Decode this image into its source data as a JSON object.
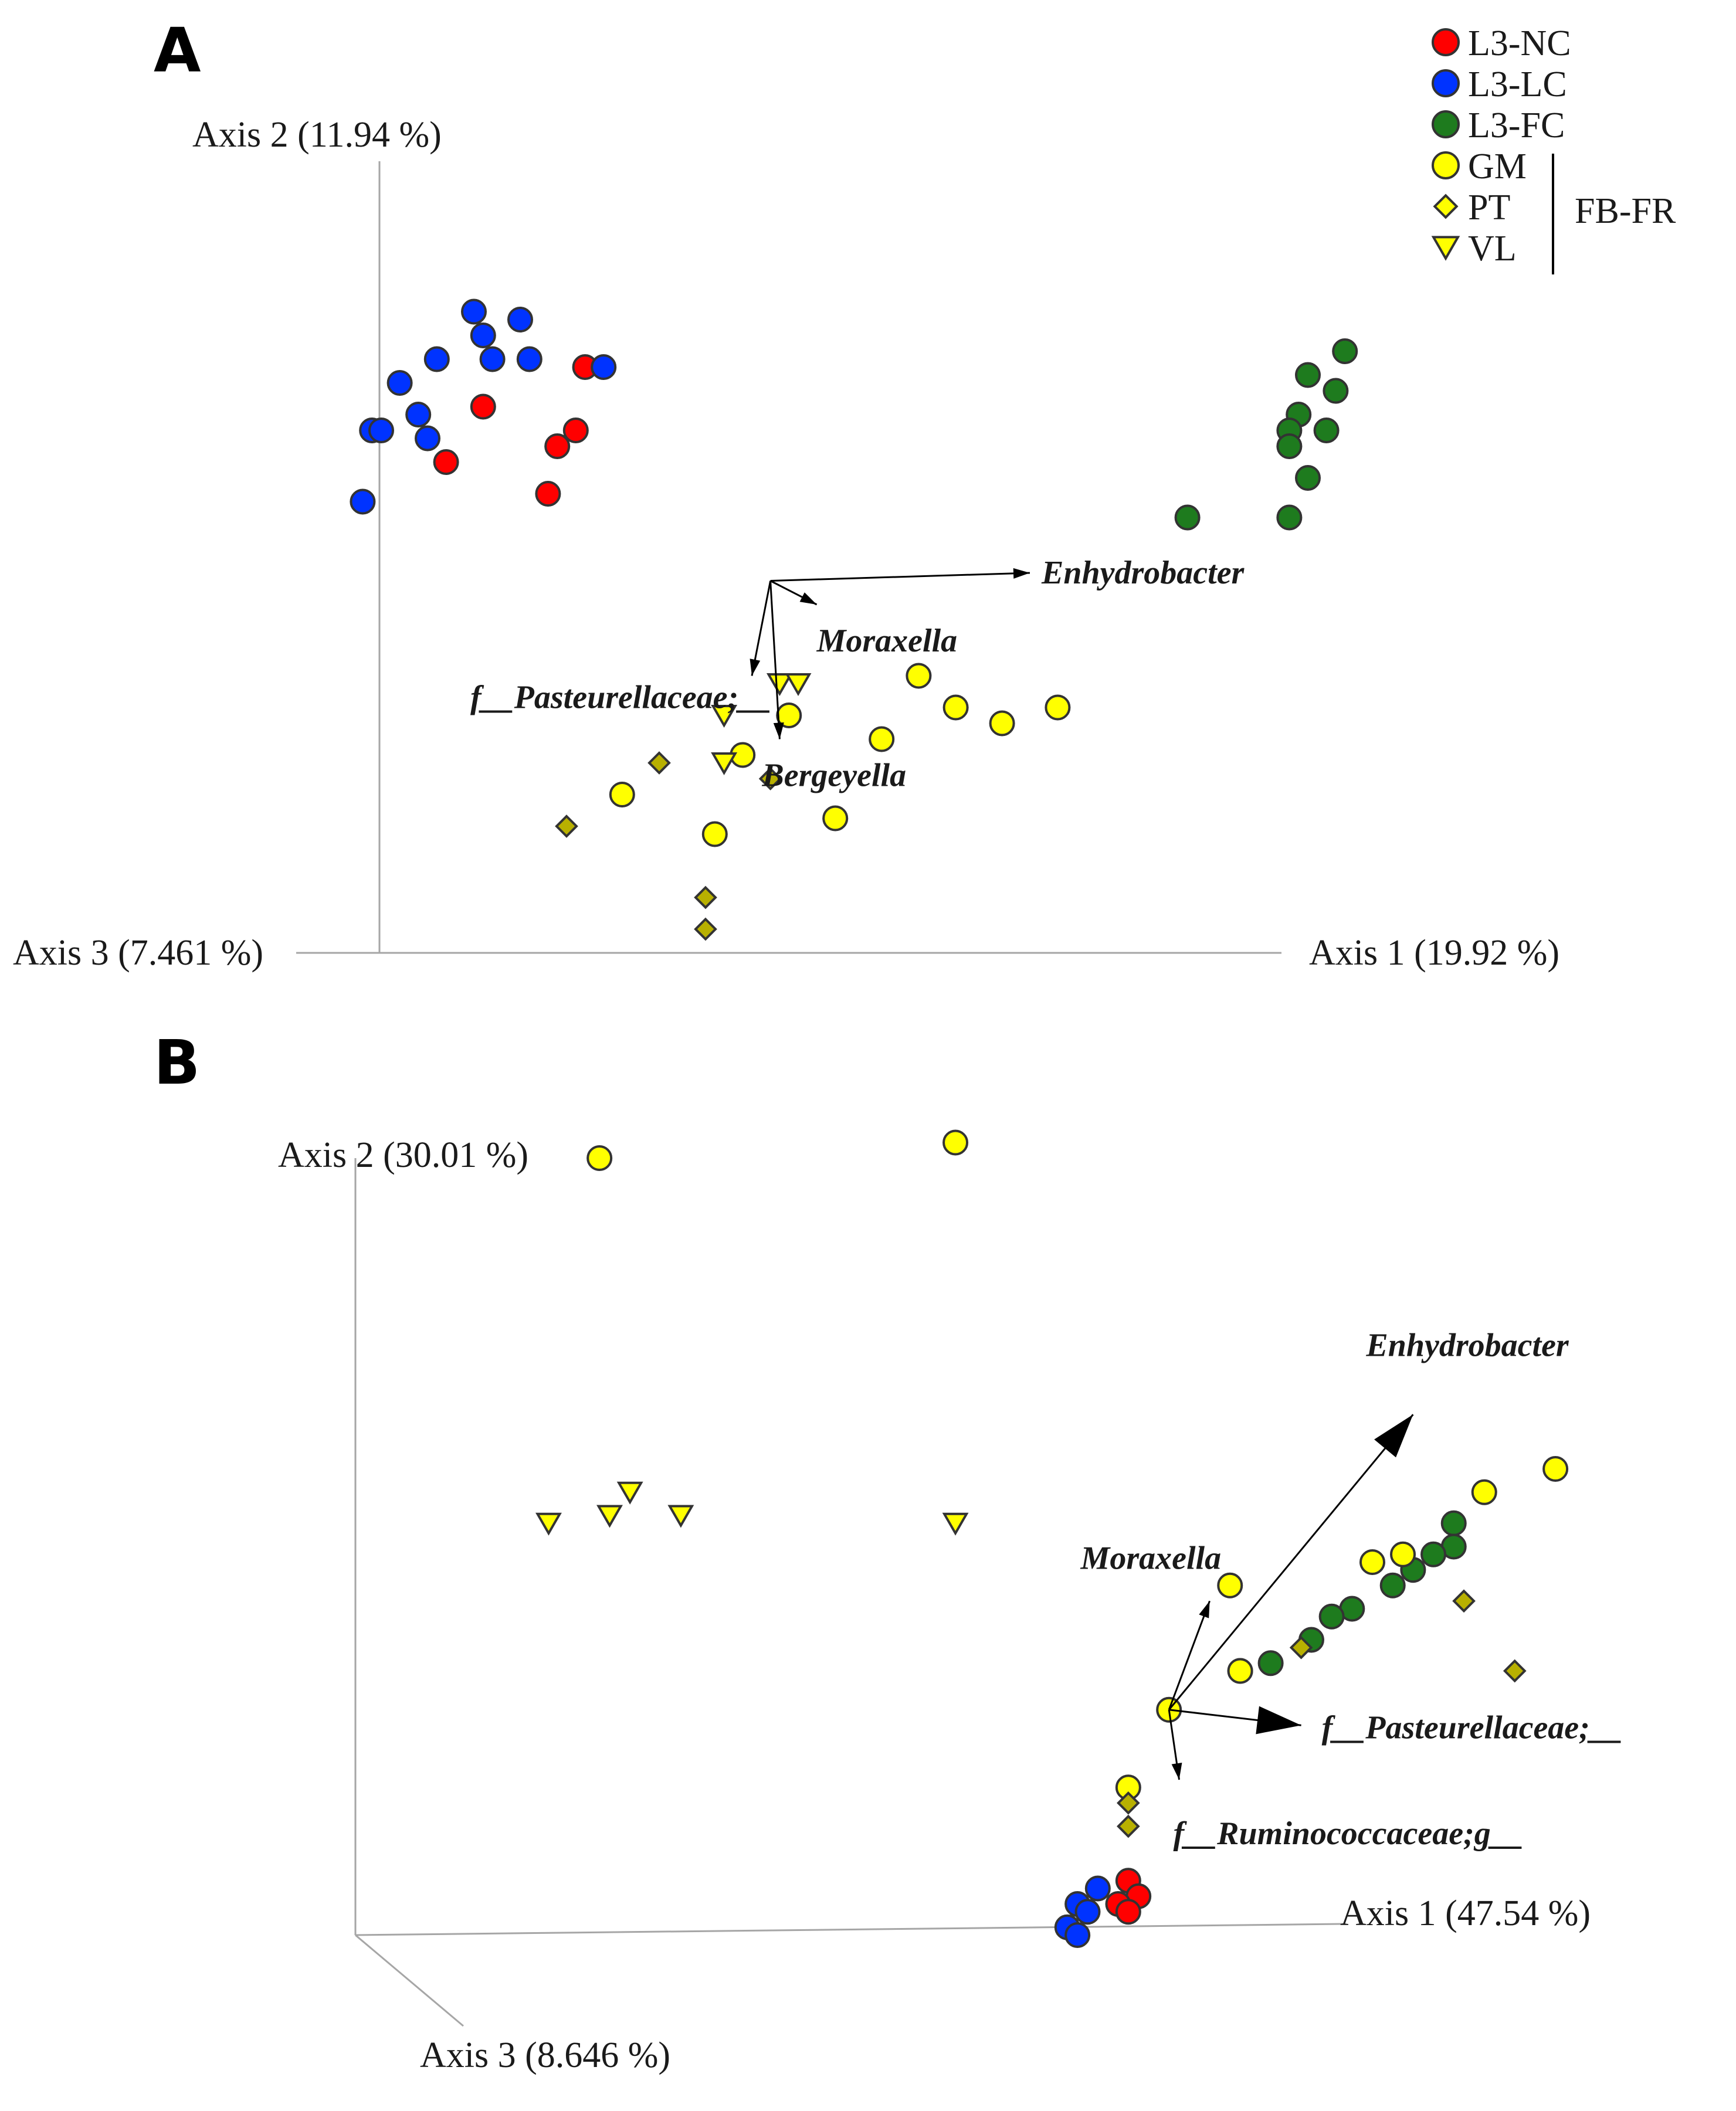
{
  "chart_data": [
    {
      "panel": "A",
      "type": "scatter",
      "projection": "3d-pcoa-biplot",
      "axes": {
        "x": "Axis 1 (19.92 %)",
        "y": "Axis 2 (11.94 %)",
        "z": "Axis 3 (7.461 %)"
      },
      "legend": {
        "position": "top-right",
        "items": [
          {
            "label": "L3-NC",
            "color": "#ff0000",
            "shape": "circle"
          },
          {
            "label": "L3-LC",
            "color": "#0033ff",
            "shape": "circle"
          },
          {
            "label": "L3-FC",
            "color": "#1e7b1e",
            "shape": "circle"
          },
          {
            "label": "GM",
            "color": "#ffff00",
            "shape": "circle"
          },
          {
            "label": "PT",
            "color": "#ffff00",
            "shape": "diamond"
          },
          {
            "label": "VL",
            "color": "#ffff00",
            "shape": "triangle"
          }
        ],
        "group_label": "FB-FR"
      },
      "series": [
        {
          "name": "L3-NC",
          "points": [
            [
              0.22,
              0.74
            ],
            [
              0.11,
              0.69
            ],
            [
              0.21,
              0.66
            ],
            [
              0.19,
              0.64
            ],
            [
              0.07,
              0.62
            ],
            [
              0.18,
              0.58
            ]
          ]
        },
        {
          "name": "L3-LC",
          "points": [
            [
              0.1,
              0.81
            ],
            [
              0.15,
              0.8
            ],
            [
              0.11,
              0.78
            ],
            [
              0.06,
              0.75
            ],
            [
              0.12,
              0.75
            ],
            [
              0.16,
              0.75
            ],
            [
              0.24,
              0.74
            ],
            [
              0.02,
              0.72
            ],
            [
              0.04,
              0.68
            ],
            [
              -0.01,
              0.66
            ],
            [
              0.0,
              0.66
            ],
            [
              0.05,
              0.65
            ],
            [
              -0.02,
              0.57
            ]
          ]
        },
        {
          "name": "L3-FC",
          "points": [
            [
              1.04,
              0.76
            ],
            [
              1.0,
              0.73
            ],
            [
              1.03,
              0.71
            ],
            [
              0.99,
              0.68
            ],
            [
              1.02,
              0.66
            ],
            [
              0.98,
              0.66
            ],
            [
              0.98,
              0.64
            ],
            [
              1.0,
              0.6
            ],
            [
              0.87,
              0.55
            ],
            [
              0.98,
              0.55
            ]
          ]
        },
        {
          "name": "GM",
          "points": [
            [
              0.58,
              0.35
            ],
            [
              0.62,
              0.31
            ],
            [
              0.73,
              0.31
            ],
            [
              0.67,
              0.29
            ],
            [
              0.44,
              0.3
            ],
            [
              0.54,
              0.27
            ],
            [
              0.39,
              0.25
            ],
            [
              0.26,
              0.2
            ],
            [
              0.49,
              0.17
            ],
            [
              0.36,
              0.15
            ]
          ]
        },
        {
          "name": "PT",
          "points": [
            [
              0.3,
              0.24
            ],
            [
              0.42,
              0.22
            ],
            [
              0.2,
              0.16
            ],
            [
              0.35,
              0.07
            ],
            [
              0.35,
              0.03
            ]
          ]
        },
        {
          "name": "VL",
          "points": [
            [
              0.43,
              0.34
            ],
            [
              0.45,
              0.34
            ],
            [
              0.37,
              0.3
            ],
            [
              0.37,
              0.24
            ]
          ]
        }
      ],
      "vectors": [
        {
          "label": "Enhydrobacter",
          "from": [
            0.42,
            0.47
          ],
          "to": [
            0.7,
            0.48
          ]
        },
        {
          "label": "Moraxella",
          "from": [
            0.42,
            0.47
          ],
          "to": [
            0.47,
            0.44
          ]
        },
        {
          "label": "f__Pasteurellaceae;__",
          "from": [
            0.42,
            0.47
          ],
          "to": [
            0.4,
            0.35
          ]
        },
        {
          "label": "Bergeyella",
          "from": [
            0.42,
            0.47
          ],
          "to": [
            0.43,
            0.27
          ]
        }
      ]
    },
    {
      "panel": "B",
      "type": "scatter",
      "projection": "3d-pcoa-biplot",
      "axes": {
        "x": "Axis 1 (47.54 %)",
        "y": "Axis 2 (30.01 %)",
        "z": "Axis 3 (8.646 %)"
      },
      "series": [
        {
          "name": "L3-NC",
          "points": [
            [
              0.76,
              0.07
            ],
            [
              0.77,
              0.05
            ],
            [
              0.75,
              0.04
            ],
            [
              0.76,
              0.03
            ]
          ]
        },
        {
          "name": "L3-LC",
          "points": [
            [
              0.73,
              0.06
            ],
            [
              0.71,
              0.04
            ],
            [
              0.72,
              0.03
            ],
            [
              0.7,
              0.01
            ],
            [
              0.71,
              0.0
            ]
          ]
        },
        {
          "name": "L3-FC",
          "points": [
            [
              1.08,
              0.53
            ],
            [
              1.08,
              0.5
            ],
            [
              1.06,
              0.49
            ],
            [
              1.04,
              0.47
            ],
            [
              1.02,
              0.45
            ],
            [
              0.98,
              0.42
            ],
            [
              0.96,
              0.41
            ],
            [
              0.94,
              0.38
            ],
            [
              0.9,
              0.35
            ],
            [
              0.87,
              0.34
            ]
          ]
        },
        {
          "name": "GM",
          "points": [
            [
              0.24,
              1.0
            ],
            [
              0.59,
              1.02
            ],
            [
              1.18,
              0.6
            ],
            [
              1.11,
              0.57
            ],
            [
              1.0,
              0.48
            ],
            [
              1.03,
              0.49
            ],
            [
              0.86,
              0.45
            ],
            [
              0.87,
              0.34
            ],
            [
              0.8,
              0.29
            ],
            [
              0.76,
              0.19
            ]
          ]
        },
        {
          "name": "PT",
          "points": [
            [
              1.09,
              0.43
            ],
            [
              0.93,
              0.37
            ],
            [
              1.14,
              0.34
            ],
            [
              0.76,
              0.17
            ],
            [
              0.76,
              0.14
            ]
          ]
        },
        {
          "name": "VL",
          "points": [
            [
              0.19,
              0.53
            ],
            [
              0.25,
              0.54
            ],
            [
              0.27,
              0.57
            ],
            [
              0.32,
              0.54
            ],
            [
              0.59,
              0.53
            ]
          ]
        }
      ],
      "vectors": [
        {
          "label": "Enhydrobacter",
          "from": [
            0.8,
            0.29
          ],
          "to": [
            1.04,
            0.67
          ]
        },
        {
          "label": "Moraxella",
          "from": [
            0.8,
            0.29
          ],
          "to": [
            0.84,
            0.43
          ]
        },
        {
          "label": "f__Pasteurellaceae;__",
          "from": [
            0.8,
            0.29
          ],
          "to": [
            0.93,
            0.27
          ]
        },
        {
          "label": "f__Ruminococcaceae;g__",
          "from": [
            0.8,
            0.29
          ],
          "to": [
            0.81,
            0.2
          ]
        }
      ]
    }
  ]
}
